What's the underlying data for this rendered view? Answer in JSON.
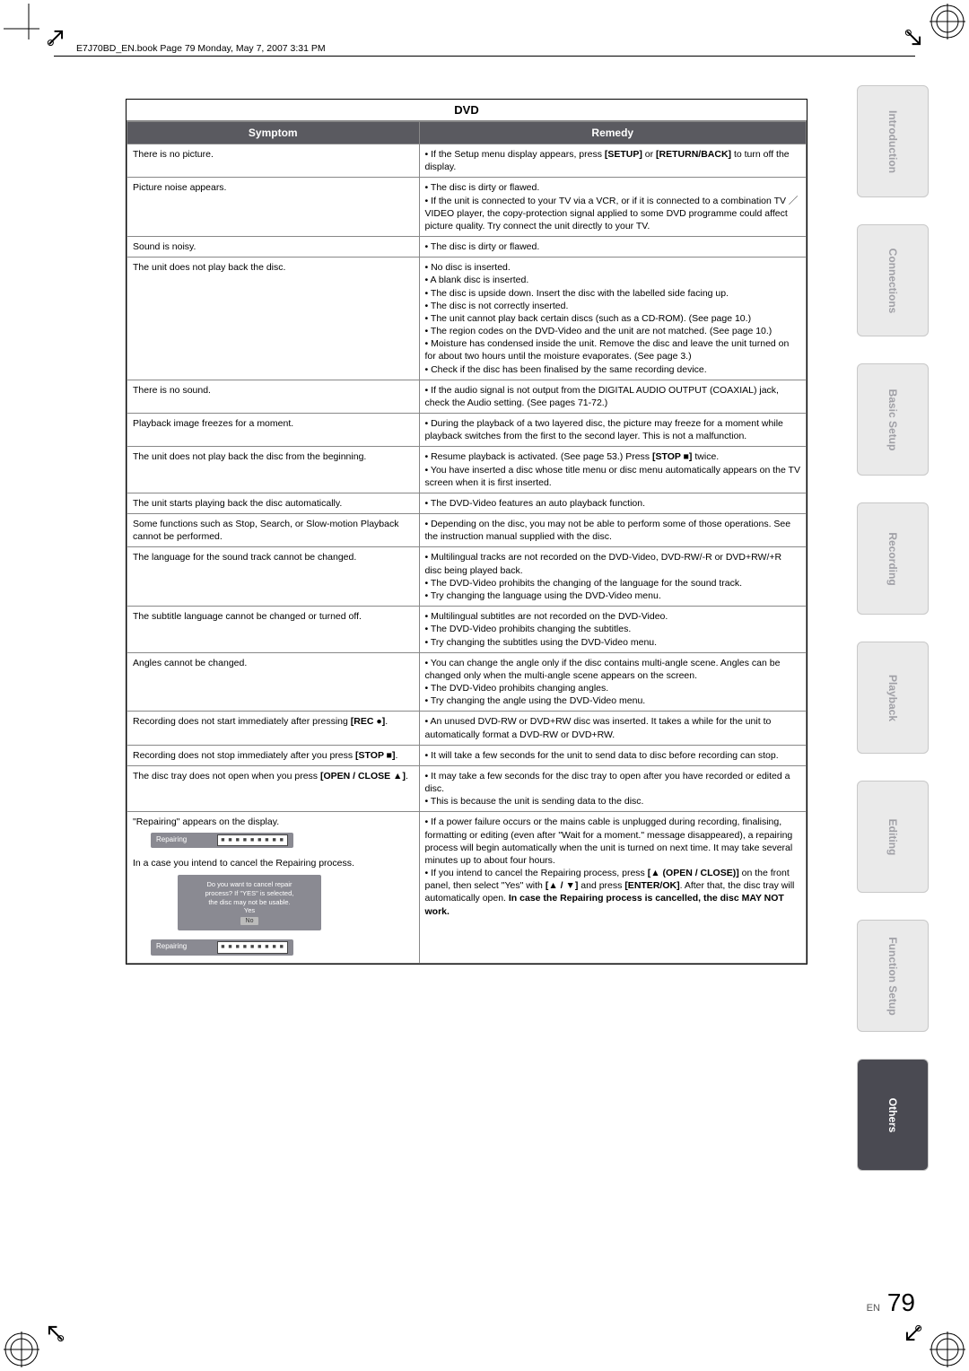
{
  "header": {
    "filepath": "E7J70BD_EN.book  Page 79  Monday, May 7, 2007  3:31 PM"
  },
  "dvd": {
    "title": "DVD",
    "cols": {
      "symptom": "Symptom",
      "remedy": "Remedy"
    },
    "rows": [
      {
        "symptom": "There is no picture.",
        "remedy": "• If the Setup menu display appears, press [SETUP] or [RETURN/BACK] to turn off the display."
      },
      {
        "symptom": "Picture noise appears.",
        "remedy": "• The disc is dirty or flawed.\n• If the unit is connected to your TV via a VCR, or if it is connected to a combination TV ／ VIDEO player, the copy-protection signal applied to some DVD programme could affect picture quality. Try connect the unit directly to your TV."
      },
      {
        "symptom": "Sound is noisy.",
        "remedy": "• The disc is dirty or flawed."
      },
      {
        "symptom": "The unit does not play back the disc.",
        "remedy": "• No disc is inserted.\n• A blank disc is inserted.\n• The disc is upside down. Insert the disc with the labelled side facing up.\n• The disc is not correctly inserted.\n• The unit cannot play back certain discs (such as a CD-ROM). (See page 10.)\n• The region codes on the DVD-Video and the unit are not matched. (See page 10.)\n• Moisture has condensed inside the unit. Remove the disc and leave the unit turned on for about two hours until the moisture evaporates. (See page 3.)\n• Check if the disc has been finalised by the same recording device."
      },
      {
        "symptom": "There is no sound.",
        "remedy": "• If the audio signal is not output from the DIGITAL AUDIO OUTPUT (COAXIAL) jack, check the Audio setting. (See pages 71-72.)"
      },
      {
        "symptom": "Playback image freezes for a moment.",
        "remedy": "• During the playback of a two layered disc, the picture may freeze for a moment while playback switches from the first to the second layer. This is not a malfunction."
      },
      {
        "symptom": "The unit does not play back the disc from the beginning.",
        "remedy": "• Resume playback is activated. (See page 53.) Press [STOP ■] twice.\n• You have inserted a disc whose title menu or disc menu automatically appears on the TV screen when it is first inserted."
      },
      {
        "symptom": "The unit starts playing back the disc automatically.",
        "remedy": "• The DVD-Video features an auto playback function."
      },
      {
        "symptom": "Some functions such as Stop, Search, or Slow-motion Playback cannot be performed.",
        "remedy": "• Depending on the disc, you may not be able to perform some of those operations. See the instruction manual supplied with the disc."
      },
      {
        "symptom": "The language for the sound track cannot be changed.",
        "remedy": "• Multilingual tracks are not recorded on the DVD-Video, DVD-RW/-R or DVD+RW/+R disc being played back.\n• The DVD-Video prohibits the changing of the language for the sound track.\n• Try changing the language using the DVD-Video menu."
      },
      {
        "symptom": "The subtitle language cannot be changed or turned off.",
        "remedy": "• Multilingual subtitles are not recorded on the DVD-Video.\n• The DVD-Video prohibits changing the subtitles.\n• Try changing the subtitles using the DVD-Video menu."
      },
      {
        "symptom": "Angles cannot be changed.",
        "remedy": "• You can change the angle only if the disc contains multi-angle scene. Angles can be changed only when the multi-angle scene appears on the screen.\n• The DVD-Video prohibits changing angles.\n• Try changing the angle using the DVD-Video menu."
      },
      {
        "symptom": "Recording does not start immediately after pressing [REC ●].",
        "remedy": "• An unused DVD-RW or DVD+RW disc was inserted. It takes a while for the unit to automatically format a DVD-RW or DVD+RW."
      },
      {
        "symptom": "Recording does not stop immediately after you press [STOP ■].",
        "remedy": "• It will take a few seconds for the unit to send data to disc before recording can stop."
      },
      {
        "symptom": "The disc tray does not open when you press [OPEN / CLOSE ▲].",
        "remedy": "• It may take a few seconds for the disc tray to open after you have recorded or edited a disc.\n• This is because the unit is sending data to the disc."
      }
    ],
    "repair_row": {
      "symptom_top": "\"Repairing\" appears on the display.",
      "symptom_mid": "In a case you intend to cancel the Repairing process.",
      "repair_label": "Repairing",
      "progress": "■ ■ ■ ■ ■ ■ ■ ■ ■",
      "cancel_box": {
        "l1": "Do you want to cancel repair",
        "l2": "process? If \"YES\" is selected,",
        "l3": "the disc may not be usable.",
        "yes": "Yes",
        "no": "No"
      },
      "remedy": "• If a power failure occurs or the mains cable is unplugged during recording, finalising, formatting or editing (even after \"Wait for a moment.\" message disappeared), a repairing process will begin automatically when the unit is turned on next time. It may take several minutes up to about four hours.\n• If you intend to cancel the Repairing process, press [▲ (OPEN / CLOSE)] on the front panel, then select \"Yes\" with [▲ / ▼] and press [ENTER/OK]. After that, the disc tray will automatically open. In case the Repairing process is cancelled, the disc MAY NOT work."
    }
  },
  "tabs": [
    "Introduction",
    "Connections",
    "Basic Setup",
    "Recording",
    "Playback",
    "Editing",
    "Function Setup",
    "Others"
  ],
  "footer": {
    "en": "EN",
    "page": "79"
  },
  "style": {
    "header_bg": "#5a5a60",
    "header_fg": "#ffffff",
    "border": "#888888",
    "tab_inactive_bg": "#eaeaea",
    "tab_inactive_fg": "#a0a0a6",
    "tab_active_bg": "#4a4a52",
    "tab_active_fg": "#ffffff",
    "repair_bg": "#8a8a92"
  }
}
